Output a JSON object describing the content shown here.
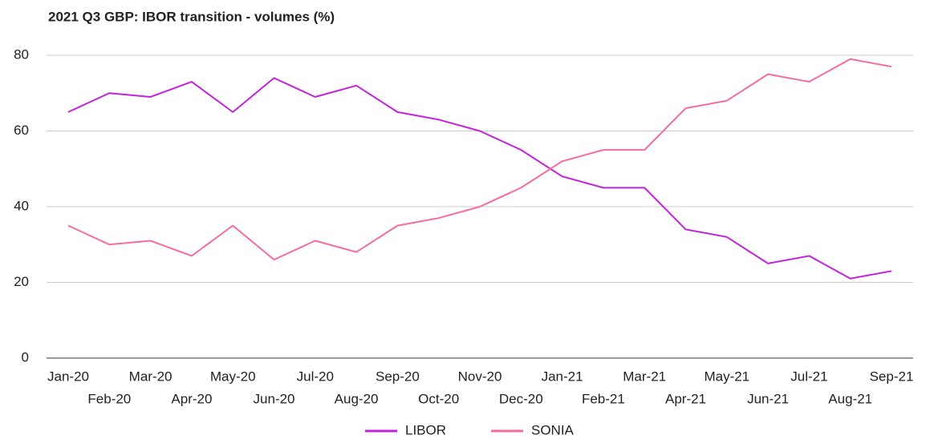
{
  "chart_data": {
    "type": "line",
    "title": "2021 Q3 GBP: IBOR transition - volumes (%)",
    "categories": [
      "Jan-20",
      "Feb-20",
      "Mar-20",
      "Apr-20",
      "May-20",
      "Jun-20",
      "Jul-20",
      "Aug-20",
      "Sep-20",
      "Oct-20",
      "Nov-20",
      "Dec-20",
      "Jan-21",
      "Feb-21",
      "Mar-21",
      "Apr-21",
      "May-21",
      "Jun-21",
      "Jul-21",
      "Aug-21",
      "Sep-21"
    ],
    "series": [
      {
        "name": "LIBOR",
        "color": "#c322dc",
        "values": [
          65,
          70,
          69,
          73,
          65,
          74,
          69,
          72,
          65,
          63,
          60,
          55,
          48,
          45,
          45,
          34,
          32,
          25,
          27,
          21,
          23
        ]
      },
      {
        "name": "SONIA",
        "color": "#f76ba0",
        "values": [
          35,
          30,
          31,
          27,
          35,
          26,
          31,
          28,
          35,
          37,
          40,
          45,
          52,
          55,
          55,
          66,
          68,
          75,
          73,
          79,
          77
        ]
      }
    ],
    "ylim": [
      0,
      80
    ],
    "yticks": [
      0,
      20,
      40,
      60,
      80
    ],
    "grid": true,
    "legend": "bottom"
  }
}
